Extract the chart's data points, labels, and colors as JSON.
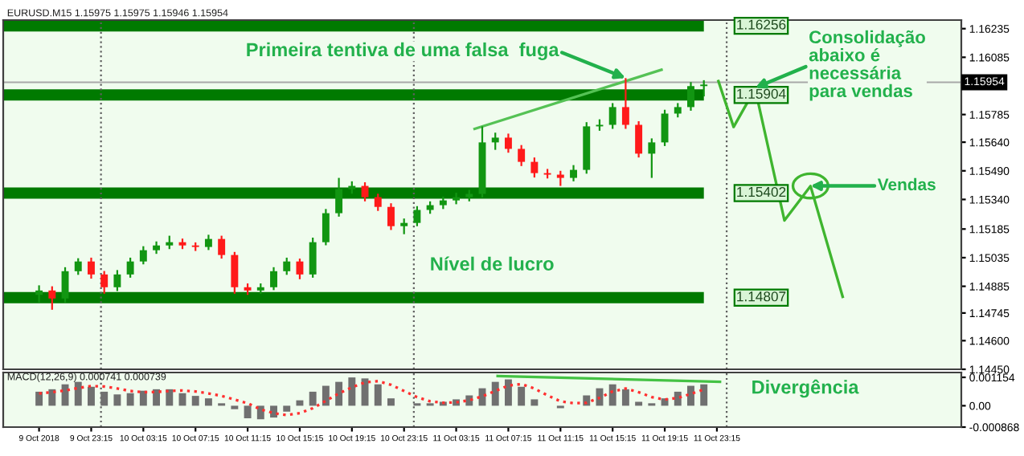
{
  "chart_data": [
    {
      "type": "candlestick",
      "tick_labels": "y",
      "xlim": [
        "2018-10-09T16:30",
        "2018-10-12T18:00"
      ],
      "ylim": [
        1.1445,
        1.1628
      ],
      "yticks": [
        {
          "value": 1.16235,
          "label": "1.16235"
        },
        {
          "value": 1.16085,
          "label": "1.16085"
        },
        {
          "value": 1.15785,
          "label": "1.15785"
        },
        {
          "value": 1.1564,
          "label": "1.15640"
        },
        {
          "value": 1.1549,
          "label": "1.15490"
        },
        {
          "value": 1.1534,
          "label": "1.15340"
        },
        {
          "value": 1.15185,
          "label": "1.15185"
        },
        {
          "value": 1.15035,
          "label": "1.15035"
        },
        {
          "value": 1.14885,
          "label": "1.14885"
        },
        {
          "value": 1.14745,
          "label": "1.14745"
        },
        {
          "value": 1.146,
          "label": "1.14600"
        },
        {
          "value": 1.1445,
          "label": "1.14450"
        }
      ],
      "x": [
        "2018-10-09T19:15",
        "2018-10-09T20:15",
        "2018-10-09T21:15",
        "2018-10-09T22:15",
        "2018-10-09T23:15",
        "2018-10-10T00:15",
        "2018-10-10T01:15",
        "2018-10-10T02:15",
        "2018-10-10T03:15",
        "2018-10-10T04:15",
        "2018-10-10T05:15",
        "2018-10-10T06:15",
        "2018-10-10T07:15",
        "2018-10-10T08:15",
        "2018-10-10T09:15",
        "2018-10-10T10:15",
        "2018-10-10T11:15",
        "2018-10-10T12:15",
        "2018-10-10T13:15",
        "2018-10-10T14:15",
        "2018-10-10T15:15",
        "2018-10-10T16:15",
        "2018-10-10T17:15",
        "2018-10-10T18:15",
        "2018-10-10T19:15",
        "2018-10-10T20:15",
        "2018-10-10T21:15",
        "2018-10-10T22:15",
        "2018-10-10T23:15",
        "2018-10-11T00:15",
        "2018-10-11T01:15",
        "2018-10-11T02:15",
        "2018-10-11T03:15",
        "2018-10-11T04:15",
        "2018-10-11T05:15",
        "2018-10-11T06:15",
        "2018-10-11T07:15",
        "2018-10-11T08:15",
        "2018-10-11T09:15",
        "2018-10-11T10:15",
        "2018-10-11T11:15",
        "2018-10-11T12:15",
        "2018-10-11T13:15",
        "2018-10-11T14:15",
        "2018-10-11T15:15",
        "2018-10-11T16:15",
        "2018-10-11T17:15",
        "2018-10-11T18:15",
        "2018-10-11T19:15",
        "2018-10-11T20:15",
        "2018-10-11T21:15",
        "2018-10-11T22:15"
      ],
      "ohlc": [
        [
          1.1484,
          1.1489,
          1.148,
          1.14863
        ],
        [
          1.14863,
          1.14885,
          1.14762,
          1.14821
        ],
        [
          1.14821,
          1.14985,
          1.148,
          1.14964
        ],
        [
          1.14964,
          1.15032,
          1.14945,
          1.15015
        ],
        [
          1.15015,
          1.15035,
          1.14925,
          1.14947
        ],
        [
          1.14947,
          1.14965,
          1.14846,
          1.1488
        ],
        [
          1.1488,
          1.1497,
          1.1486,
          1.14947
        ],
        [
          1.14947,
          1.15035,
          1.1493,
          1.15015
        ],
        [
          1.15015,
          1.15095,
          1.15,
          1.15074
        ],
        [
          1.15074,
          1.1512,
          1.15055,
          1.15099
        ],
        [
          1.15099,
          1.1515,
          1.1508,
          1.15116
        ],
        [
          1.15116,
          1.15135,
          1.1508,
          1.15099
        ],
        [
          1.15099,
          1.15115,
          1.1507,
          1.15091
        ],
        [
          1.15091,
          1.15155,
          1.15075,
          1.15133
        ],
        [
          1.15133,
          1.1515,
          1.1503,
          1.15049
        ],
        [
          1.15049,
          1.15065,
          1.14846,
          1.1488
        ],
        [
          1.1488,
          1.149,
          1.1484,
          1.14863
        ],
        [
          1.14863,
          1.149,
          1.14845,
          1.1488
        ],
        [
          1.1488,
          1.14985,
          1.14865,
          1.14964
        ],
        [
          1.14964,
          1.15035,
          1.14945,
          1.15015
        ],
        [
          1.15015,
          1.1503,
          1.14922,
          1.14947
        ],
        [
          1.14947,
          1.1514,
          1.1493,
          1.15116
        ],
        [
          1.15116,
          1.1529,
          1.151,
          1.15268
        ],
        [
          1.15268,
          1.15453,
          1.1525,
          1.15394
        ],
        [
          1.15394,
          1.15435,
          1.1537,
          1.15411
        ],
        [
          1.15411,
          1.1543,
          1.1533,
          1.15352
        ],
        [
          1.15352,
          1.1537,
          1.1528,
          1.15301
        ],
        [
          1.15301,
          1.1532,
          1.1518,
          1.152
        ],
        [
          1.152,
          1.1524,
          1.15158,
          1.15217
        ],
        [
          1.15217,
          1.15305,
          1.152,
          1.15285
        ],
        [
          1.15285,
          1.1533,
          1.15265,
          1.1531
        ],
        [
          1.1531,
          1.15355,
          1.1529,
          1.15335
        ],
        [
          1.15335,
          1.15375,
          1.15315,
          1.15352
        ],
        [
          1.15352,
          1.1539,
          1.1533,
          1.15369
        ],
        [
          1.15369,
          1.15723,
          1.1535,
          1.15639
        ],
        [
          1.15639,
          1.1569,
          1.156,
          1.15664
        ],
        [
          1.15664,
          1.15685,
          1.15585,
          1.15605
        ],
        [
          1.15605,
          1.15625,
          1.15515,
          1.15537
        ],
        [
          1.15537,
          1.1556,
          1.15455,
          1.15478
        ],
        [
          1.15478,
          1.155,
          1.1545,
          1.1547
        ],
        [
          1.1547,
          1.1549,
          1.15411,
          1.15453
        ],
        [
          1.15453,
          1.1552,
          1.15435,
          1.15495
        ],
        [
          1.15495,
          1.15745,
          1.15475,
          1.15723
        ],
        [
          1.15723,
          1.1576,
          1.157,
          1.15731
        ],
        [
          1.15731,
          1.15845,
          1.1571,
          1.15824
        ],
        [
          1.15824,
          1.15976,
          1.1571,
          1.15731
        ],
        [
          1.15731,
          1.1575,
          1.1556,
          1.1558
        ],
        [
          1.1558,
          1.1566,
          1.15453,
          1.15639
        ],
        [
          1.15639,
          1.1581,
          1.1562,
          1.1579
        ],
        [
          1.1579,
          1.15845,
          1.1577,
          1.15824
        ],
        [
          1.15824,
          1.15955,
          1.15805,
          1.15934
        ],
        [
          1.15934,
          1.15965,
          1.1588,
          1.15942
        ]
      ],
      "colors": [
        "#129612",
        "#ff1a1a",
        "#129612",
        "#129612",
        "#ff1a1a",
        "#ff1a1a",
        "#129612",
        "#129612",
        "#129612",
        "#129612",
        "#129612",
        "#ff1a1a",
        "#ff1a1a",
        "#129612",
        "#ff1a1a",
        "#ff1a1a",
        "#ff1a1a",
        "#129612",
        "#129612",
        "#129612",
        "#ff1a1a",
        "#129612",
        "#129612",
        "#129612",
        "#129612",
        "#ff1a1a",
        "#ff1a1a",
        "#ff1a1a",
        "#129612",
        "#129612",
        "#129612",
        "#129612",
        "#129612",
        "#129612",
        "#129612",
        "#129612",
        "#ff1a1a",
        "#ff1a1a",
        "#ff1a1a",
        "#ff1a1a",
        "#ff1a1a",
        "#129612",
        "#129612",
        "#129612",
        "#129612",
        "#ff1a1a",
        "#ff1a1a",
        "#129612",
        "#129612",
        "#129612",
        "#129612",
        "#129612"
      ],
      "series": [
        {
          "type": "line",
          "color": "#55c255",
          "x": [
            "2018-10-11T04:40",
            "2018-10-11T19:00"
          ],
          "values": [
            1.1571,
            1.1602
          ]
        },
        {
          "type": "line",
          "color": "#3fb52f",
          "x": [
            "2018-10-11T23:22",
            "2018-10-12T00:32",
            "2018-10-12T02:11",
            "2018-10-12T04:26",
            "2018-10-12T06:26",
            "2018-10-12T08:54"
          ],
          "values": [
            1.1596,
            1.1572,
            1.1592,
            1.1523,
            1.1541,
            1.1483
          ]
        }
      ],
      "bands": [
        {
          "axis": "y",
          "from": 1.1622,
          "to": 1.1628,
          "label": "1.16256",
          "color": "#007a00"
        },
        {
          "axis": "y",
          "from": 1.15858,
          "to": 1.15917,
          "label": "1.15904",
          "color": "#007a00"
        },
        {
          "axis": "y",
          "from": 1.15344,
          "to": 1.15403,
          "label": "1.15402",
          "color": "#007a00"
        },
        {
          "axis": "y",
          "from": 1.14796,
          "to": 1.14855,
          "label": "1.14807",
          "color": "#007a00"
        }
      ],
      "ref_lines": [
        {
          "axis": "y",
          "value": 1.15954,
          "label": "1.15954",
          "color": "#a8a8a8",
          "line_style": "solid"
        },
        {
          "axis": "x",
          "value": "2018-10-10T00:00",
          "color": "#606060",
          "line_style": "dotted"
        },
        {
          "axis": "x",
          "value": "2018-10-11T00:00",
          "color": "#606060",
          "line_style": "dotted"
        },
        {
          "axis": "x",
          "value": "2018-10-12T00:00",
          "color": "#606060",
          "line_style": "dotted"
        }
      ],
      "annotations": [
        "EURUSD.M15 1.15975 1.15975 1.15946 1.15954",
        {
          "text": "Primeira tentiva de uma falsa  fuga",
          "x": "2018-10-11T16:15",
          "y": 1.15976
        },
        {
          "text": "Consolidação\nabaixo é\nnecessária\npara vendas",
          "x": "2018-10-12T02:11",
          "y": 1.15925
        },
        {
          "text": "Vendas",
          "x": "2018-10-12T06:26",
          "y": 1.15411
        },
        {
          "text": "Nível de lucro",
          "x": "2018-10-11T06:00",
          "y": 1.14807
        }
      ]
    },
    {
      "type": "bar",
      "xlim": [
        "2018-10-09T16:30",
        "2018-10-12T18:00"
      ],
      "ylim": [
        -0.000868,
        0.00135
      ],
      "yticks": [
        {
          "value": 0.001154,
          "label": "0.001154"
        },
        {
          "value": 0,
          "label": "0.00"
        },
        {
          "value": -0.000868,
          "label": "-0.000868"
        }
      ],
      "xticks": [
        {
          "value": "2018-10-09T19:15",
          "label": "9 Oct 2018"
        },
        {
          "value": "2018-10-09T23:15",
          "label": "9 Oct 23:15"
        },
        {
          "value": "2018-10-10T03:15",
          "label": "10 Oct 03:15"
        },
        {
          "value": "2018-10-10T07:15",
          "label": "10 Oct 07:15"
        },
        {
          "value": "2018-10-10T11:15",
          "label": "10 Oct 11:15"
        },
        {
          "value": "2018-10-10T15:15",
          "label": "10 Oct 15:15"
        },
        {
          "value": "2018-10-10T19:15",
          "label": "10 Oct 19:15"
        },
        {
          "value": "2018-10-10T23:15",
          "label": "10 Oct 23:15"
        },
        {
          "value": "2018-10-11T03:15",
          "label": "11 Oct 03:15"
        },
        {
          "value": "2018-10-11T07:15",
          "label": "11 Oct 07:15"
        },
        {
          "value": "2018-10-11T11:15",
          "label": "11 Oct 11:15"
        },
        {
          "value": "2018-10-11T15:15",
          "label": "11 Oct 15:15"
        },
        {
          "value": "2018-10-11T19:15",
          "label": "11 Oct 19:15"
        },
        {
          "value": "2018-10-11T23:15",
          "label": "11 Oct 23:15"
        }
      ],
      "x": [
        "2018-10-09T19:15",
        "2018-10-09T20:15",
        "2018-10-09T21:15",
        "2018-10-09T22:15",
        "2018-10-09T23:15",
        "2018-10-10T00:15",
        "2018-10-10T01:15",
        "2018-10-10T02:15",
        "2018-10-10T03:15",
        "2018-10-10T04:15",
        "2018-10-10T05:15",
        "2018-10-10T06:15",
        "2018-10-10T07:15",
        "2018-10-10T08:15",
        "2018-10-10T09:15",
        "2018-10-10T10:15",
        "2018-10-10T11:15",
        "2018-10-10T12:15",
        "2018-10-10T13:15",
        "2018-10-10T14:15",
        "2018-10-10T15:15",
        "2018-10-10T16:15",
        "2018-10-10T17:15",
        "2018-10-10T18:15",
        "2018-10-10T19:15",
        "2018-10-10T20:15",
        "2018-10-10T21:15",
        "2018-10-10T22:15",
        "2018-10-10T23:15",
        "2018-10-11T00:15",
        "2018-10-11T01:15",
        "2018-10-11T02:15",
        "2018-10-11T03:15",
        "2018-10-11T04:15",
        "2018-10-11T05:15",
        "2018-10-11T06:15",
        "2018-10-11T07:15",
        "2018-10-11T08:15",
        "2018-10-11T09:15",
        "2018-10-11T10:15",
        "2018-10-11T11:15",
        "2018-10-11T12:15",
        "2018-10-11T13:15",
        "2018-10-11T14:15",
        "2018-10-11T15:15",
        "2018-10-11T16:15",
        "2018-10-11T17:15",
        "2018-10-11T18:15",
        "2018-10-11T19:15",
        "2018-10-11T20:15",
        "2018-10-11T21:15",
        "2018-10-11T22:15"
      ],
      "series": [
        {
          "type": "bar",
          "color": "#707070",
          "values": [
            0.00057,
            0.00067,
            0.00087,
            0.00097,
            0.00077,
            0.00057,
            0.00046,
            0.00051,
            0.00061,
            0.00067,
            0.00067,
            0.00051,
            0.0004,
            0.0003,
            0.0001,
            -0.00014,
            -0.00051,
            -0.00055,
            -0.00048,
            -0.00024,
            0.00022,
            0.00057,
            0.00081,
            0.00097,
            0.00115,
            0.00111,
            0.00087,
            0.0003,
            0.0,
            0.0001,
            0.0001,
            0.00016,
            0.00026,
            0.00042,
            0.00071,
            0.00097,
            0.00107,
            0.00077,
            0.00026,
            0.0,
            -0.0001,
            0.0,
            0.00042,
            0.00071,
            0.00087,
            0.00067,
            0.00016,
            0.0001,
            0.0003,
            0.00057,
            0.00081,
            0.00087
          ]
        },
        {
          "type": "line",
          "color": "#ff3030",
          "line_style": "dotted",
          "values": [
            0.0005,
            0.00055,
            0.00062,
            0.00072,
            0.0008,
            0.00078,
            0.0007,
            0.0006,
            0.00055,
            0.00056,
            0.0006,
            0.00062,
            0.00058,
            0.0005,
            0.0004,
            0.00025,
            0.0001,
            -0.00015,
            -0.0003,
            -0.00038,
            -0.0003,
            -0.0001,
            0.0002,
            0.0005,
            0.00075,
            0.00095,
            0.001,
            0.00085,
            0.0006,
            0.00035,
            0.00018,
            0.00012,
            0.00014,
            0.00022,
            0.00038,
            0.0006,
            0.00082,
            0.00088,
            0.0007,
            0.00042,
            0.00018,
            0.0001,
            0.00012,
            0.00032,
            0.00058,
            0.0007,
            0.00055,
            0.00035,
            0.00025,
            0.00032,
            0.00048,
            0.00066
          ]
        },
        {
          "type": "line",
          "color": "#44c244",
          "x": [
            "2018-10-11T06:26",
            "2018-10-11T23:29"
          ],
          "values": [
            0.00121,
            0.00097
          ]
        }
      ],
      "ref_lines": [
        {
          "axis": "x",
          "value": "2018-10-10T00:00",
          "color": "#606060",
          "line_style": "dotted"
        },
        {
          "axis": "x",
          "value": "2018-10-11T00:00",
          "color": "#606060",
          "line_style": "dotted"
        },
        {
          "axis": "x",
          "value": "2018-10-12T00:00",
          "color": "#606060",
          "line_style": "dotted"
        }
      ],
      "annotations": [
        "MACD(12,26,9) 0.000741 0.000739",
        {
          "text": "Divergência",
          "x": "2018-10-11T23:29",
          "y": 0.00097
        }
      ]
    }
  ]
}
